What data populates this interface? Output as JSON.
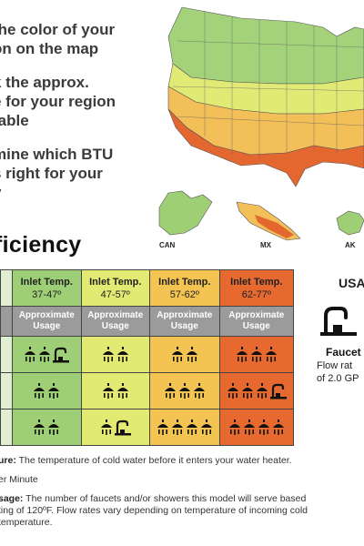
{
  "instructions": {
    "step1": [
      "the color of your",
      "on on the map"
    ],
    "step2": [
      "k the approx.",
      "e for your region",
      "table"
    ],
    "step3": [
      "mine which BTU",
      "s right for your",
      "y"
    ]
  },
  "map": {
    "labels": {
      "can": "CAN",
      "mx": "MX",
      "ak": "AK"
    },
    "zone_colors": {
      "cold": "#9fcf74",
      "cool": "#e2ea76",
      "warm": "#f3bf58",
      "hot": "#e4672f"
    }
  },
  "section_title": "ficiency",
  "table": {
    "columns": [
      {
        "title": "Inlet Temp.",
        "range": "37-47º",
        "color": "#9ecf76"
      },
      {
        "title": "Inlet Temp.",
        "range": "47-57º",
        "color": "#e2ea74"
      },
      {
        "title": "Inlet Temp.",
        "range": "57-62º",
        "color": "#f4c452"
      },
      {
        "title": "Inlet Temp.",
        "range": "62-77º",
        "color": "#e66a30"
      }
    ],
    "subheader": [
      "Approximate",
      "Usage"
    ],
    "rows": [
      [
        {
          "showers": 2,
          "faucets": 1
        },
        {
          "showers": 2,
          "faucets": 0
        },
        {
          "showers": 2,
          "faucets": 0
        },
        {
          "showers": 3,
          "faucets": 0
        }
      ],
      [
        {
          "showers": 2,
          "faucets": 0
        },
        {
          "showers": 2,
          "faucets": 0
        },
        {
          "showers": 3,
          "faucets": 0
        },
        {
          "showers": 3,
          "faucets": 1
        }
      ],
      [
        {
          "showers": 2,
          "faucets": 0
        },
        {
          "showers": 1,
          "faucets": 1
        },
        {
          "showers": 4,
          "faucets": 0
        },
        {
          "showers": 4,
          "faucets": 0
        }
      ]
    ]
  },
  "side": {
    "usa": "USA",
    "faucet_caption": "Faucet",
    "flow_line1": "Flow rat",
    "flow_line2": "of 2.0 GP"
  },
  "notes": {
    "n1_label": "ure:",
    "n1_text": " The temperature of cold water before it enters your water heater.",
    "n2_text": "er Minute",
    "n3_label": "sage:",
    "n3_text": " The number of faucets and/or showers this model will serve based",
    "n3_line2": "ting of 120ºF. Flow rates vary depending on temperature of incoming cold",
    "n3_line3": " temperature."
  }
}
